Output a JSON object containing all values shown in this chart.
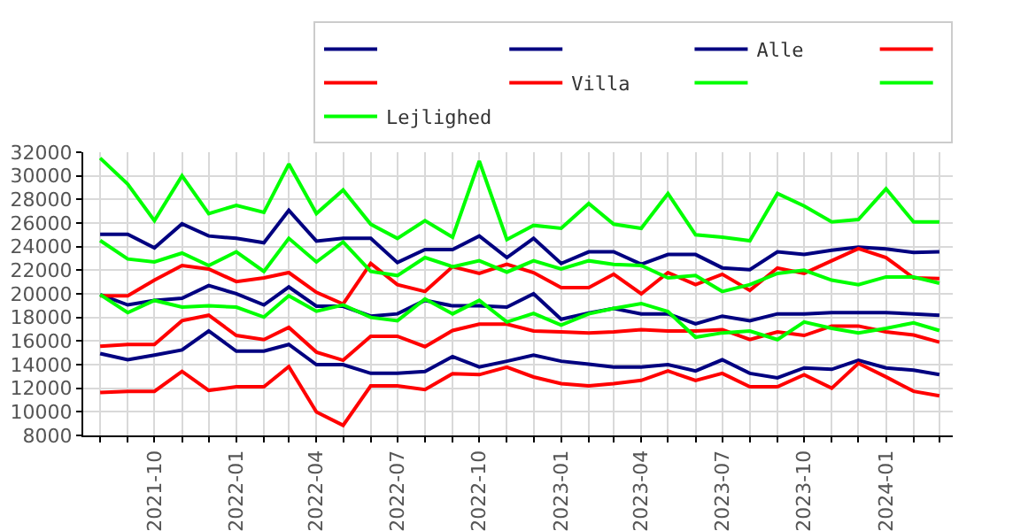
{
  "chart_data": {
    "type": "line",
    "x": [
      "2021-08",
      "2021-09",
      "2021-10",
      "2021-11",
      "2021-12",
      "2022-01",
      "2022-02",
      "2022-03",
      "2022-04",
      "2022-05",
      "2022-06",
      "2022-07",
      "2022-08",
      "2022-09",
      "2022-10",
      "2022-11",
      "2022-12",
      "2023-01",
      "2023-02",
      "2023-03",
      "2023-04",
      "2023-05",
      "2023-06",
      "2023-07",
      "2023-08",
      "2023-09",
      "2023-10",
      "2023-11",
      "2023-12",
      "2024-01",
      "2024-02",
      "2024-03"
    ],
    "xlim": [
      "2021-07-13",
      "2024-03-16"
    ],
    "xticks": [
      {
        "value": "2021-08",
        "label": null
      },
      {
        "value": "2021-09",
        "label": null
      },
      {
        "value": "2021-10",
        "label": "2021-10"
      },
      {
        "value": "2021-11",
        "label": null
      },
      {
        "value": "2021-12",
        "label": null
      },
      {
        "value": "2022-01",
        "label": "2022-01"
      },
      {
        "value": "2022-02",
        "label": null
      },
      {
        "value": "2022-03",
        "label": null
      },
      {
        "value": "2022-04",
        "label": "2022-04"
      },
      {
        "value": "2022-05",
        "label": null
      },
      {
        "value": "2022-06",
        "label": null
      },
      {
        "value": "2022-07",
        "label": "2022-07"
      },
      {
        "value": "2022-08",
        "label": null
      },
      {
        "value": "2022-09",
        "label": null
      },
      {
        "value": "2022-10",
        "label": "2022-10"
      },
      {
        "value": "2022-11",
        "label": null
      },
      {
        "value": "2022-12",
        "label": null
      },
      {
        "value": "2023-01",
        "label": "2023-01"
      },
      {
        "value": "2023-02",
        "label": null
      },
      {
        "value": "2023-03",
        "label": null
      },
      {
        "value": "2023-04",
        "label": "2023-04"
      },
      {
        "value": "2023-05",
        "label": null
      },
      {
        "value": "2023-06",
        "label": null
      },
      {
        "value": "2023-07",
        "label": "2023-07"
      },
      {
        "value": "2023-08",
        "label": null
      },
      {
        "value": "2023-09",
        "label": null
      },
      {
        "value": "2023-10",
        "label": "2023-10"
      },
      {
        "value": "2023-11",
        "label": null
      },
      {
        "value": "2023-12",
        "label": null
      },
      {
        "value": "2024-01",
        "label": "2024-01"
      },
      {
        "value": "2024-02",
        "label": null
      },
      {
        "value": "2024-03",
        "label": null
      }
    ],
    "ylim": [
      8000,
      32000
    ],
    "yticks": [
      8000,
      10000,
      12000,
      14000,
      16000,
      18000,
      20000,
      22000,
      24000,
      26000,
      28000,
      30000,
      32000
    ],
    "grid": true,
    "legend": "top right",
    "series": [
      {
        "color": "#000080",
        "values": [
          25050,
          25050,
          23900,
          25930,
          24900,
          24700,
          24330,
          27070,
          24470,
          24700,
          24700,
          22650,
          23750,
          23750,
          24900,
          23070,
          24700,
          22570,
          23560,
          23560,
          22500,
          23330,
          23330,
          22200,
          22040,
          23560,
          23330,
          23700,
          23950,
          23800,
          23500,
          23560
        ]
      },
      {
        "color": "#000080",
        "values": [
          19940,
          19060,
          19440,
          19630,
          20700,
          20010,
          19060,
          20580,
          18950,
          18950,
          18110,
          18300,
          19440,
          18980,
          18980,
          18870,
          20000,
          17840,
          18380,
          18760,
          18300,
          18300,
          17460,
          18110,
          17720,
          18300,
          18300,
          18410,
          18410,
          18410,
          18300,
          18180
        ]
      },
      {
        "name": "Alle",
        "color": "#000080",
        "values": [
          14940,
          14410,
          14800,
          15250,
          16850,
          15140,
          15140,
          15710,
          14000,
          14000,
          13260,
          13260,
          13420,
          14680,
          13800,
          14290,
          14800,
          14290,
          14030,
          13800,
          13800,
          14000,
          13460,
          14410,
          13260,
          12880,
          13720,
          13600,
          14370,
          13720,
          13530,
          13150
        ]
      },
      {
        "color": "#ff0000",
        "values": [
          19830,
          19830,
          21160,
          22400,
          22100,
          21040,
          21350,
          21800,
          20130,
          19140,
          22580,
          20780,
          20200,
          22300,
          21730,
          22500,
          21800,
          20520,
          20520,
          21660,
          20000,
          21800,
          20780,
          21660,
          20290,
          22190,
          21730,
          22800,
          23830,
          23070,
          21350,
          21300
        ]
      },
      {
        "color": "#ff0000",
        "values": [
          15550,
          15710,
          15710,
          17720,
          18180,
          16470,
          16120,
          17150,
          15060,
          14370,
          16400,
          16400,
          15520,
          16890,
          17430,
          17430,
          16850,
          16770,
          16690,
          16770,
          16970,
          16850,
          16850,
          16970,
          16120,
          16770,
          16470,
          17270,
          17270,
          16770,
          16510,
          15900
        ]
      },
      {
        "name": "Villa",
        "color": "#ff0000",
        "values": [
          11630,
          11740,
          11740,
          13420,
          11820,
          12120,
          12120,
          13830,
          9990,
          8850,
          12200,
          12200,
          11890,
          13230,
          13150,
          13780,
          12950,
          12390,
          12200,
          12390,
          12660,
          13460,
          12660,
          13260,
          12120,
          12120,
          13150,
          12000,
          14110,
          12960,
          11740,
          11360
        ]
      },
      {
        "color": "#00ff00",
        "values": [
          31500,
          29300,
          26200,
          30000,
          26800,
          27500,
          26900,
          31000,
          26800,
          28800,
          25900,
          24700,
          26200,
          24800,
          31250,
          24600,
          25800,
          25550,
          27650,
          25900,
          25550,
          28500,
          25000,
          24800,
          24500,
          28500,
          27450,
          26100,
          26300,
          28900,
          26100,
          26100
        ]
      },
      {
        "color": "#00ff00",
        "values": [
          24520,
          22950,
          22700,
          23450,
          22400,
          23560,
          21900,
          24700,
          22700,
          24400,
          21900,
          21550,
          23070,
          22300,
          22800,
          21840,
          22800,
          22100,
          22800,
          22500,
          22400,
          21350,
          21550,
          20200,
          20780,
          21730,
          22000,
          21160,
          20780,
          21430,
          21430,
          20900
        ]
      },
      {
        "name": "Lejlighed",
        "color": "#00ff00",
        "values": [
          19940,
          18410,
          19440,
          18870,
          18980,
          18870,
          18030,
          19830,
          18520,
          19060,
          18000,
          17720,
          19560,
          18300,
          19440,
          17610,
          18340,
          17350,
          18300,
          18760,
          19180,
          18490,
          16320,
          16690,
          16850,
          16120,
          17610,
          17080,
          16690,
          17080,
          17540,
          16890
        ]
      }
    ]
  }
}
